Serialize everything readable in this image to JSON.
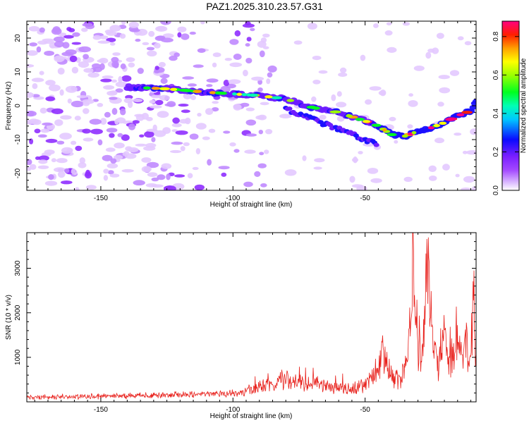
{
  "title": "PAZ1.2025.310.23.57.G31",
  "chart_data": [
    {
      "type": "heatmap",
      "title": "PAZ1.2025.310.23.57.G31",
      "xlabel": "Height of straight line (km)",
      "ylabel": "Frequency (Hz)",
      "xlim": [
        -178,
        -8
      ],
      "ylim": [
        -25,
        25
      ],
      "xticks": [
        -150,
        -100,
        -50
      ],
      "yticks": [
        -20,
        -10,
        0,
        10,
        20
      ],
      "colorbar": {
        "label": "Normalized spectral amplitude",
        "range": [
          0.0,
          0.88
        ],
        "ticks": [
          0.0,
          0.2,
          0.4,
          0.6,
          0.8
        ]
      },
      "ridge": {
        "description": "main signal track frequency vs height",
        "x": [
          -140,
          -125,
          -110,
          -100,
          -90,
          -80,
          -70,
          -60,
          -50,
          -45,
          -40,
          -35,
          -30,
          -25,
          -20,
          -15,
          -10,
          -8
        ],
        "y": [
          5.5,
          5.0,
          4.0,
          3.5,
          3.0,
          2.0,
          -0.5,
          -2.0,
          -4.5,
          -6.0,
          -8.5,
          -9.0,
          -7.5,
          -6.5,
          -5.0,
          -3.0,
          -1.5,
          1.0
        ]
      }
    },
    {
      "type": "line",
      "xlabel": "Height of straight line (km)",
      "ylabel": "SNR (10 * v/v)",
      "xlim": [
        -178,
        -8
      ],
      "ylim": [
        0,
        3800
      ],
      "xticks": [
        -150,
        -100,
        -50
      ],
      "yticks": [
        1000,
        2000,
        3000
      ],
      "series": [
        {
          "name": "SNR",
          "color": "#e8211c",
          "x": [
            -178,
            -160,
            -140,
            -120,
            -100,
            -95,
            -90,
            -85,
            -80,
            -75,
            -70,
            -65,
            -60,
            -55,
            -50,
            -45,
            -43,
            -40,
            -38,
            -36,
            -34,
            -33,
            -32,
            -30,
            -28,
            -27,
            -26,
            -24,
            -22,
            -20,
            -18,
            -16,
            -14,
            -12,
            -10,
            -9,
            -8
          ],
          "y": [
            130,
            140,
            160,
            190,
            220,
            260,
            420,
            480,
            600,
            520,
            480,
            400,
            380,
            300,
            450,
            900,
            1300,
            600,
            550,
            700,
            1100,
            2150,
            3800,
            1500,
            1400,
            2800,
            3450,
            1550,
            1000,
            1950,
            900,
            1500,
            1300,
            1600,
            1100,
            2450,
            800
          ]
        }
      ]
    }
  ]
}
